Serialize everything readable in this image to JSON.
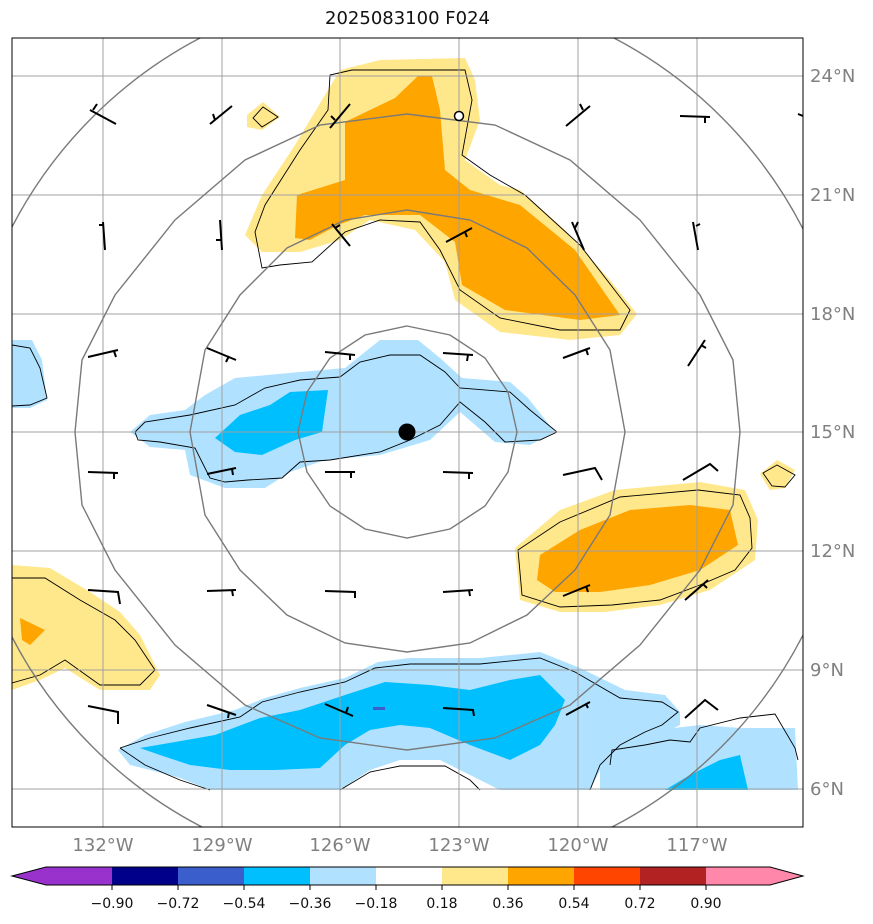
{
  "title": "2025083100 F024",
  "map": {
    "lat_labels": [
      "24°N",
      "21°N",
      "18°N",
      "15°N",
      "12°N",
      "9°N",
      "6°N"
    ],
    "lon_labels": [
      "132°W",
      "129°W",
      "126°W",
      "123°W",
      "120°W",
      "117°W"
    ],
    "lat_values": [
      24,
      21,
      18,
      15,
      12,
      9,
      6
    ],
    "lon_values": [
      -132,
      -129,
      -126,
      -123,
      -120,
      -117
    ],
    "extent": {
      "lon_min": -134.3,
      "lon_max": -114.3,
      "lat_min": 5.0,
      "lat_max": 24.9
    },
    "center_marker": {
      "lon": -124.3,
      "lat": 15.0
    },
    "small_marker": {
      "lon": -123.0,
      "lat": 22.9
    }
  },
  "colorbar": {
    "levels": [
      "−0.90",
      "−0.72",
      "−0.54",
      "−0.36",
      "−0.18",
      "0.18",
      "0.36",
      "0.54",
      "0.72",
      "0.90"
    ],
    "colors": [
      "#9932cc",
      "#00008b",
      "#3a5fcd",
      "#00bfff",
      "#b0e2ff",
      "#ffffff",
      "#ffe88c",
      "#ffa500",
      "#ff4500",
      "#b22222",
      "#ff88aa"
    ]
  },
  "colors": {
    "grid": "#808080",
    "light_blue": "#b0e2ff",
    "blue": "#00bfff",
    "light_yellow": "#ffe88c",
    "orange": "#ffa500"
  }
}
